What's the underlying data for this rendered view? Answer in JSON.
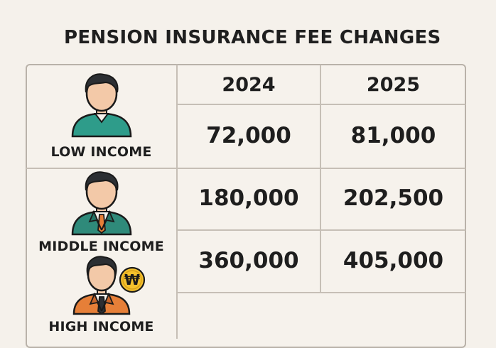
{
  "title": "PENSION INSURANCE FEE CHANGES",
  "table": {
    "columns": [
      "2024",
      "2025"
    ],
    "rows": [
      {
        "label": "LOW INCOME",
        "y2024": "72,000",
        "y2025": "81,000"
      },
      {
        "label": "MIDDLE INCOME",
        "y2024": "180,000",
        "y2025": "202,500"
      },
      {
        "label": "HIGH INCOME",
        "y2024": "360,000",
        "y2025": "405,000"
      }
    ]
  },
  "currency_badge": "₩",
  "colors": {
    "background": "#f5f1eb",
    "low_income_shirt": "#2e9c8a",
    "middle_income_suit": "#2f8a7a",
    "high_income_suit": "#e67f38",
    "badge": "#f4c12d"
  }
}
